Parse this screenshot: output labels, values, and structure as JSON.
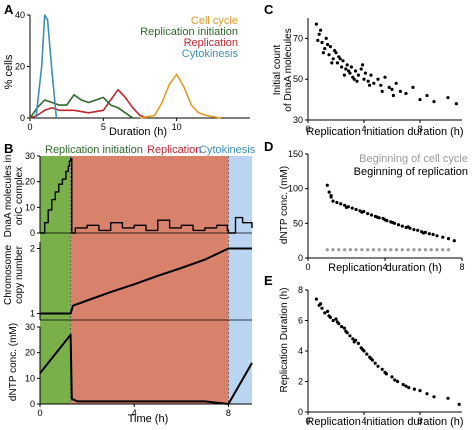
{
  "colors": {
    "cell_cycle": "#e39b28",
    "replication_initiation": "#2e6b2a",
    "replication": "#c2272d",
    "cytokinesis": "#3d8fb8",
    "bg_initiation": "#79b04a",
    "bg_replication": "#d9826b",
    "bg_cytokinesis": "#b9d5f2",
    "scatter_black": "#000000",
    "scatter_gray": "#9a9a9a"
  },
  "chart_data": [
    {
      "panel": "A",
      "type": "line",
      "xlabel": "Duration (h)",
      "ylabel": "% cells",
      "xlim": [
        0,
        15
      ],
      "ylim": [
        0,
        40
      ],
      "xticks": [
        0,
        5,
        10
      ],
      "yticks": [
        0,
        20,
        40
      ],
      "legend_position": "top-right",
      "series": [
        {
          "name": "Cell cycle",
          "color": "cell_cycle",
          "x": [
            7.5,
            8.5,
            9.0,
            9.5,
            10.0,
            10.5,
            11.0,
            11.5,
            12.0,
            13.0
          ],
          "y": [
            0,
            1,
            6,
            13,
            17,
            12,
            5,
            2,
            1,
            0
          ]
        },
        {
          "name": "Replication initiation",
          "color": "replication_initiation",
          "x": [
            0,
            0.5,
            1.0,
            1.5,
            2.0,
            2.5,
            3.0,
            3.5,
            4.0,
            4.5,
            5.0,
            5.5,
            6.0,
            6.5,
            7.0
          ],
          "y": [
            0,
            4,
            7,
            6,
            5,
            5,
            9,
            7,
            6,
            7,
            8,
            5,
            4,
            2,
            0
          ]
        },
        {
          "name": "Replication",
          "color": "replication",
          "x": [
            0,
            0.5,
            1.0,
            1.5,
            2.0,
            2.5,
            3.0,
            4.0,
            5.0,
            5.5,
            6.0,
            6.5,
            7.0,
            7.5,
            8.0
          ],
          "y": [
            0,
            1,
            3,
            4,
            3,
            3,
            3,
            2,
            3,
            7,
            11,
            8,
            4,
            1,
            0
          ]
        },
        {
          "name": "Cytokinesis",
          "color": "cytokinesis",
          "x": [
            0.4,
            0.8,
            1.0,
            1.2,
            1.5,
            1.8
          ],
          "y": [
            0,
            20,
            40,
            38,
            18,
            0
          ]
        }
      ]
    },
    {
      "panel": "B",
      "type": "line",
      "xlabel": "Time (h)",
      "xlim": [
        0,
        9
      ],
      "xticks": [
        0,
        4,
        8
      ],
      "phases": [
        {
          "name": "Replication initiation",
          "start": 0,
          "end": 1.3,
          "color": "bg_initiation",
          "label_color": "replication_initiation"
        },
        {
          "name": "Replication",
          "start": 1.3,
          "end": 8.0,
          "color": "bg_replication",
          "label_color": "replication"
        },
        {
          "name": "Cytokinesis",
          "start": 8.0,
          "end": 9.0,
          "color": "bg_cytokinesis",
          "label_color": "cytokinesis"
        }
      ],
      "subplots": [
        {
          "ylabel": "DnaA molecules in oriC complex",
          "ylim": [
            0,
            30
          ],
          "yticks": [
            0,
            10,
            20,
            30
          ],
          "series": [
            {
              "x": [
                0,
                0.2,
                0.35,
                0.5,
                0.65,
                0.8,
                0.95,
                1.1,
                1.2,
                1.25,
                1.3,
                1.35,
                1.5,
                2.0,
                2.5,
                3.0,
                3.5,
                4.0,
                4.5,
                5.0,
                5.5,
                6.0,
                6.5,
                7.0,
                7.5,
                7.95,
                8.0,
                8.3,
                8.6,
                9.0
              ],
              "y": [
                0,
                4,
                9,
                13,
                16,
                19,
                21,
                24,
                26,
                28,
                29,
                0,
                2,
                3,
                1,
                4,
                2,
                3,
                1,
                5,
                2,
                3,
                1,
                2,
                3,
                1,
                0,
                6,
                4,
                2
              ]
            }
          ]
        },
        {
          "ylabel": "Chromosome copy number",
          "ylim": [
            0.9,
            2.1
          ],
          "yticks": [
            1,
            2
          ],
          "series": [
            {
              "x": [
                0,
                1.3,
                1.4,
                2.0,
                3.0,
                4.0,
                5.0,
                6.0,
                7.0,
                8.0,
                9.0
              ],
              "y": [
                1.0,
                1.0,
                1.12,
                1.2,
                1.33,
                1.45,
                1.58,
                1.7,
                1.83,
                2.0,
                2.0
              ]
            }
          ]
        },
        {
          "ylabel": "dNTP conc. (mM)",
          "ylim": [
            0,
            30
          ],
          "yticks": [
            0,
            10,
            20,
            30
          ],
          "series": [
            {
              "x": [
                0,
                1.3,
                1.35,
                1.6,
                2.0,
                3.0,
                4.0,
                5.0,
                6.0,
                7.0,
                8.0,
                8.5,
                9.0
              ],
              "y": [
                12,
                27,
                2,
                1,
                1,
                1,
                1,
                1,
                1,
                1,
                0,
                8,
                16
              ]
            }
          ]
        }
      ]
    },
    {
      "panel": "C",
      "type": "scatter",
      "xlabel": "Replication initiation duration (h)",
      "ylabel": "Initial count of DnaA molecules",
      "xlim": [
        0,
        11
      ],
      "ylim": [
        30,
        80
      ],
      "xticks": [
        0,
        4,
        8
      ],
      "yticks": [
        30,
        50,
        70
      ],
      "series": [
        {
          "color": "scatter_black",
          "x": [
            0.6,
            0.8,
            1.0,
            1.2,
            1.3,
            1.5,
            1.6,
            1.8,
            2.0,
            2.1,
            2.2,
            2.4,
            2.5,
            2.7,
            2.8,
            3.0,
            3.1,
            3.2,
            3.4,
            3.6,
            3.8,
            4.0,
            4.1,
            4.3,
            4.5,
            4.7,
            5.0,
            5.2,
            5.5,
            5.8,
            6.0,
            6.3,
            6.6,
            7.0,
            7.5,
            8.0,
            8.5,
            9.0,
            10.0,
            10.6,
            0.9,
            1.4,
            1.9,
            2.3,
            2.9,
            3.3,
            3.9,
            4.4,
            5.3,
            6.1,
            0.7,
            1.1,
            1.7,
            2.6,
            3.5
          ],
          "y": [
            77,
            72,
            68,
            65,
            70,
            62,
            66,
            60,
            63,
            58,
            61,
            56,
            59,
            55,
            57,
            53,
            56,
            51,
            54,
            52,
            55,
            50,
            53,
            49,
            52,
            48,
            50,
            47,
            51,
            46,
            45,
            48,
            44,
            43,
            46,
            40,
            42,
            39,
            41,
            38,
            74,
            67,
            64,
            60,
            54,
            50,
            57,
            47,
            44,
            42,
            69,
            63,
            58,
            52,
            49
          ]
        }
      ]
    },
    {
      "panel": "D",
      "type": "scatter",
      "xlabel": "Replication duration (h)",
      "ylabel": "dNTP conc. (mM)",
      "xlim": [
        0,
        8
      ],
      "ylim": [
        0,
        150
      ],
      "xticks": [
        0,
        4,
        8
      ],
      "yticks": [
        0,
        50,
        100,
        150
      ],
      "legend_position": "top-right",
      "series": [
        {
          "name": "Beginning of cell cycle",
          "color": "scatter_gray",
          "x": [
            1.0,
            1.3,
            1.6,
            1.9,
            2.2,
            2.5,
            2.8,
            3.1,
            3.4,
            3.7,
            4.0,
            4.3,
            4.6,
            4.9,
            5.2,
            5.5,
            5.8,
            6.1,
            6.4,
            6.7,
            7.0,
            7.3
          ],
          "y": [
            12,
            12,
            12,
            12,
            12,
            12,
            12,
            12,
            12,
            12,
            12,
            12,
            12,
            12,
            12,
            12,
            12,
            12,
            12,
            12,
            12,
            12
          ]
        },
        {
          "name": "Beginning of replication",
          "color": "scatter_black",
          "x": [
            1.0,
            1.1,
            1.2,
            1.3,
            1.5,
            1.7,
            1.9,
            2.1,
            2.3,
            2.5,
            2.7,
            2.9,
            3.1,
            3.3,
            3.5,
            3.7,
            3.9,
            4.0,
            4.1,
            4.3,
            4.5,
            4.7,
            4.9,
            5.1,
            5.3,
            5.5,
            5.7,
            5.9,
            6.1,
            6.3,
            6.5,
            6.7,
            7.0,
            7.3,
            7.6,
            1.2,
            2.0,
            2.8,
            3.6,
            4.4,
            5.2,
            6.0
          ],
          "y": [
            105,
            95,
            88,
            82,
            80,
            78,
            76,
            74,
            72,
            70,
            68,
            67,
            64,
            62,
            60,
            58,
            57,
            55,
            54,
            52,
            50,
            48,
            46,
            44,
            43,
            41,
            40,
            38,
            37,
            35,
            34,
            32,
            30,
            28,
            25,
            90,
            73,
            66,
            59,
            51,
            45,
            36
          ]
        }
      ]
    },
    {
      "panel": "E",
      "type": "scatter",
      "xlabel": "Replication initiation duration (h)",
      "ylabel": "Replication Duration (h)",
      "xlim": [
        0,
        11
      ],
      "ylim": [
        0,
        8
      ],
      "xticks": [
        0,
        4,
        8
      ],
      "yticks": [
        0,
        2,
        4,
        6,
        8
      ],
      "series": [
        {
          "color": "scatter_black",
          "x": [
            0.6,
            0.8,
            1.0,
            1.2,
            1.4,
            1.6,
            1.8,
            2.0,
            2.2,
            2.4,
            2.6,
            2.8,
            3.0,
            3.2,
            3.4,
            3.6,
            3.8,
            4.0,
            4.2,
            4.4,
            4.6,
            4.8,
            5.0,
            5.3,
            5.6,
            6.0,
            6.4,
            6.8,
            7.2,
            7.6,
            8.0,
            8.5,
            9.0,
            10.0,
            10.8,
            0.9,
            1.5,
            2.1,
            2.7,
            3.3,
            3.9,
            4.5,
            5.5,
            6.2,
            7.0
          ],
          "y": [
            7.4,
            7.0,
            6.8,
            6.5,
            6.6,
            6.2,
            6.0,
            6.1,
            5.8,
            5.6,
            5.5,
            5.2,
            5.0,
            4.8,
            4.7,
            4.5,
            4.2,
            4.0,
            3.8,
            3.6,
            3.4,
            3.2,
            3.0,
            2.8,
            2.5,
            2.3,
            2.0,
            1.8,
            1.6,
            1.5,
            1.4,
            1.2,
            1.0,
            0.9,
            0.5,
            7.1,
            6.3,
            5.9,
            5.3,
            4.6,
            4.1,
            3.5,
            2.6,
            2.1,
            1.7
          ]
        }
      ]
    }
  ],
  "text": {
    "panel_a_label": "A",
    "panel_b_label": "B",
    "panel_c_label": "C",
    "panel_d_label": "D",
    "panel_e_label": "E",
    "a_ylabel": "% cells",
    "a_xlabel": "Duration (h)",
    "legend_cell_cycle": "Cell cycle",
    "legend_replication_initiation": "Replication initiation",
    "legend_replication": "Replication",
    "legend_cytokinesis": "Cytokinesis",
    "b_phase_initiation": "Replication initiation",
    "b_phase_replication": "Replication",
    "b_phase_cytokinesis": "Cytokinesis",
    "b_ylabel_dnaa_1": "DnaA molecules in",
    "b_ylabel_dnaa_2": "oriC complex",
    "b_ylabel_chrom_1": "Chromosome",
    "b_ylabel_chrom_2": "copy number",
    "b_ylabel_dntp": "dNTP conc. (mM)",
    "b_xlabel": "Time (h)",
    "c_ylabel_1": "Initial count",
    "c_ylabel_2": "of DnaA molecules",
    "c_xlabel": "Replication initiation duration (h)",
    "d_ylabel": "dNTP conc. (mM)",
    "d_xlabel": "Replication duration (h)",
    "d_legend_gray": "Beginning of cell cycle",
    "d_legend_black": "Beginning of replication",
    "e_ylabel": "Replication Duration (h)",
    "e_xlabel": "Replication initiation duration (h)"
  }
}
